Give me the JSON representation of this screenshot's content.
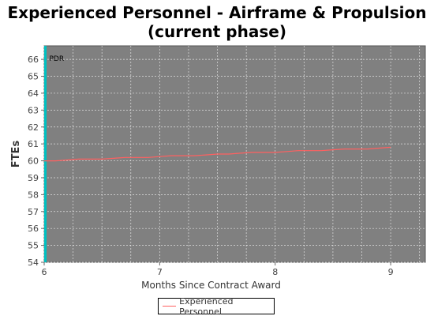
{
  "chart_data": {
    "type": "line",
    "title_line1": "Experienced Personnel - Airframe & Propulsion",
    "title_line2": "(current phase)",
    "xlabel": "Months Since Contract Award",
    "ylabel": "FTEs",
    "xlim": [
      6,
      9.3
    ],
    "ylim": [
      54,
      66.8
    ],
    "x_ticks": [
      6,
      7,
      8,
      9
    ],
    "y_ticks": [
      54,
      55,
      56,
      57,
      58,
      59,
      60,
      61,
      62,
      63,
      64,
      65,
      66
    ],
    "grid": true,
    "background": "#808080",
    "marker": {
      "x": 6,
      "label": "PDR",
      "color": "#00c0c0"
    },
    "legend_position": "bottom",
    "series": [
      {
        "name": "Experienced Personnel",
        "color": "#ff6060",
        "x": [
          6.0,
          6.1,
          6.2,
          6.3,
          6.4,
          6.5,
          6.6,
          6.7,
          6.8,
          6.9,
          7.0,
          7.1,
          7.2,
          7.3,
          7.4,
          7.5,
          7.6,
          7.7,
          7.8,
          7.9,
          8.0,
          8.1,
          8.2,
          8.3,
          8.4,
          8.5,
          8.6,
          8.7,
          8.8,
          8.9,
          9.0
        ],
        "y": [
          60.0,
          60.0,
          60.05,
          60.1,
          60.1,
          60.1,
          60.15,
          60.2,
          60.2,
          60.2,
          60.25,
          60.3,
          60.3,
          60.3,
          60.35,
          60.4,
          60.4,
          60.45,
          60.5,
          60.5,
          60.5,
          60.55,
          60.6,
          60.6,
          60.6,
          60.65,
          60.7,
          60.7,
          60.7,
          60.75,
          60.8
        ]
      }
    ]
  }
}
